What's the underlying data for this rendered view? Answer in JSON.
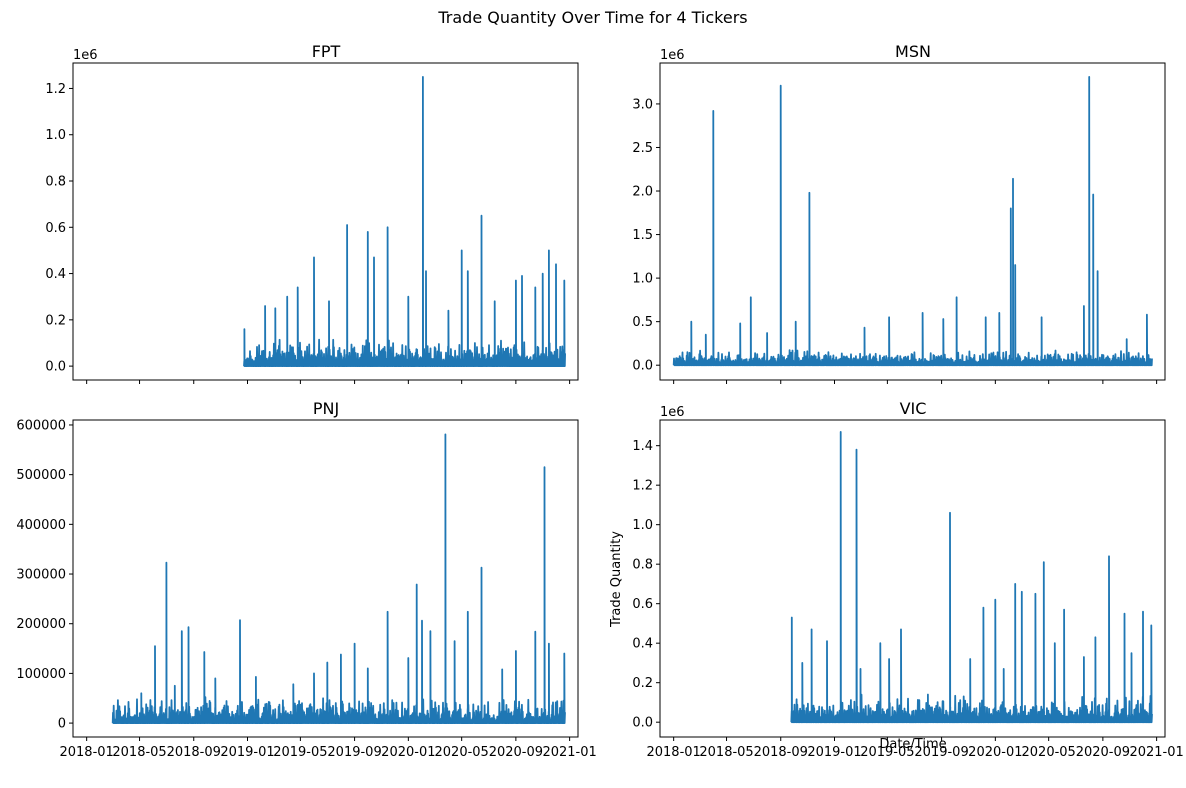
{
  "figure_title": "Trade Quantity Over Time for 4 Tickers",
  "chart_data": [
    {
      "type": "line",
      "title": "FPT",
      "xlabel": "",
      "ylabel": "",
      "offset_label": "1e6",
      "x_range": [
        "2017-12-01",
        "2021-01-20"
      ],
      "ylim": [
        -0.06,
        1.31
      ],
      "yticks": [
        0.0,
        0.2,
        0.4,
        0.6,
        0.8,
        1.0,
        1.2
      ],
      "ytick_labels": [
        "0.0",
        "0.2",
        "0.4",
        "0.6",
        "0.8",
        "1.0",
        "1.2"
      ],
      "xticks": [
        "2018-01",
        "2018-05",
        "2018-09",
        "2019-01",
        "2019-05",
        "2019-09",
        "2020-01",
        "2020-05",
        "2020-09",
        "2021-01"
      ],
      "xtick_labels": [],
      "color": "#1f77b4",
      "base": 0.02,
      "noise": 0.1,
      "start": "2018-12-24",
      "end": "2020-12-22",
      "peaks": [
        [
          "2018-12-25",
          0.16
        ],
        [
          "2019-02-10",
          0.26
        ],
        [
          "2019-03-05",
          0.25
        ],
        [
          "2019-04-01",
          0.3
        ],
        [
          "2019-04-25",
          0.34
        ],
        [
          "2019-06-01",
          0.47
        ],
        [
          "2019-07-05",
          0.28
        ],
        [
          "2019-08-15",
          0.61
        ],
        [
          "2019-10-01",
          0.58
        ],
        [
          "2019-10-15",
          0.47
        ],
        [
          "2019-11-15",
          0.6
        ],
        [
          "2020-01-01",
          0.3
        ],
        [
          "2020-02-03",
          1.25
        ],
        [
          "2020-02-10",
          0.41
        ],
        [
          "2020-04-01",
          0.24
        ],
        [
          "2020-05-01",
          0.5
        ],
        [
          "2020-05-15",
          0.41
        ],
        [
          "2020-06-15",
          0.65
        ],
        [
          "2020-07-15",
          0.28
        ],
        [
          "2020-09-01",
          0.37
        ],
        [
          "2020-09-15",
          0.39
        ],
        [
          "2020-10-15",
          0.34
        ],
        [
          "2020-11-01",
          0.4
        ],
        [
          "2020-11-15",
          0.5
        ],
        [
          "2020-12-01",
          0.44
        ],
        [
          "2020-12-20",
          0.37
        ]
      ]
    },
    {
      "type": "line",
      "title": "MSN",
      "xlabel": "",
      "ylabel": "",
      "offset_label": "1e6",
      "x_range": [
        "2017-12-01",
        "2021-01-20"
      ],
      "ylim": [
        -0.17,
        3.47
      ],
      "yticks": [
        0.0,
        0.5,
        1.0,
        1.5,
        2.0,
        2.5,
        3.0
      ],
      "ytick_labels": [
        "0.0",
        "0.5",
        "1.0",
        "1.5",
        "2.0",
        "2.5",
        "3.0"
      ],
      "xticks": [
        "2018-01",
        "2018-05",
        "2018-09",
        "2019-01",
        "2019-05",
        "2019-09",
        "2020-01",
        "2020-05",
        "2020-09",
        "2021-01"
      ],
      "xtick_labels": [],
      "color": "#1f77b4",
      "base": 0.03,
      "noise": 0.15,
      "start": "2018-01-01",
      "end": "2020-12-22",
      "peaks": [
        [
          "2018-02-10",
          0.5
        ],
        [
          "2018-03-15",
          0.35
        ],
        [
          "2018-04-01",
          2.92
        ],
        [
          "2018-06-01",
          0.48
        ],
        [
          "2018-06-25",
          0.78
        ],
        [
          "2018-08-01",
          0.37
        ],
        [
          "2018-09-01",
          3.21
        ],
        [
          "2018-10-05",
          0.5
        ],
        [
          "2018-11-05",
          1.98
        ],
        [
          "2019-03-10",
          0.43
        ],
        [
          "2019-05-05",
          0.55
        ],
        [
          "2019-07-20",
          0.6
        ],
        [
          "2019-09-05",
          0.53
        ],
        [
          "2019-10-05",
          0.78
        ],
        [
          "2019-12-10",
          0.55
        ],
        [
          "2020-01-10",
          0.6
        ],
        [
          "2020-02-05",
          1.8
        ],
        [
          "2020-02-10",
          2.14
        ],
        [
          "2020-02-15",
          1.15
        ],
        [
          "2020-04-15",
          0.55
        ],
        [
          "2020-07-20",
          0.68
        ],
        [
          "2020-08-01",
          3.31
        ],
        [
          "2020-08-10",
          1.96
        ],
        [
          "2020-08-20",
          1.08
        ],
        [
          "2020-10-25",
          0.3
        ],
        [
          "2020-12-10",
          0.58
        ]
      ]
    },
    {
      "type": "line",
      "title": "PNJ",
      "xlabel": "",
      "ylabel": "",
      "offset_label": "",
      "x_range": [
        "2017-12-01",
        "2021-01-20"
      ],
      "ylim": [
        -28000,
        610000
      ],
      "yticks": [
        0,
        100000,
        200000,
        300000,
        400000,
        500000,
        600000
      ],
      "ytick_labels": [
        "0",
        "100000",
        "200000",
        "300000",
        "400000",
        "500000",
        "600000"
      ],
      "xticks": [
        "2018-01",
        "2018-05",
        "2018-09",
        "2019-01",
        "2019-05",
        "2019-09",
        "2020-01",
        "2020-05",
        "2020-09",
        "2021-01"
      ],
      "xtick_labels": [
        "2018-01",
        "2018-05",
        "2018-09",
        "2019-01",
        "2019-05",
        "2019-09",
        "2020-01",
        "2020-05",
        "2020-09",
        "2021-01"
      ],
      "color": "#1f77b4",
      "base": 5000,
      "noise": 50000,
      "start": "2018-03-01",
      "end": "2020-12-22",
      "peaks": [
        [
          "2018-05-05",
          60000
        ],
        [
          "2018-06-05",
          155000
        ],
        [
          "2018-07-01",
          323000
        ],
        [
          "2018-07-20",
          75000
        ],
        [
          "2018-08-05",
          185000
        ],
        [
          "2018-08-20",
          193000
        ],
        [
          "2018-09-25",
          143000
        ],
        [
          "2018-10-20",
          90000
        ],
        [
          "2018-12-15",
          207000
        ],
        [
          "2019-01-20",
          93000
        ],
        [
          "2019-04-15",
          78000
        ],
        [
          "2019-06-01",
          100000
        ],
        [
          "2019-07-01",
          122000
        ],
        [
          "2019-08-01",
          138000
        ],
        [
          "2019-09-01",
          160000
        ],
        [
          "2019-10-01",
          110000
        ],
        [
          "2019-11-15",
          224000
        ],
        [
          "2020-01-01",
          131000
        ],
        [
          "2020-01-20",
          279000
        ],
        [
          "2020-02-01",
          206000
        ],
        [
          "2020-02-20",
          185000
        ],
        [
          "2020-03-25",
          581000
        ],
        [
          "2020-04-15",
          165000
        ],
        [
          "2020-05-15",
          224000
        ],
        [
          "2020-06-15",
          313000
        ],
        [
          "2020-08-01",
          108000
        ],
        [
          "2020-09-01",
          145000
        ],
        [
          "2020-10-15",
          184000
        ],
        [
          "2020-11-05",
          515000
        ],
        [
          "2020-11-15",
          160000
        ],
        [
          "2020-12-20",
          140000
        ]
      ]
    },
    {
      "type": "line",
      "title": "VIC",
      "xlabel": "Date/Time",
      "ylabel": "Trade Quantity",
      "offset_label": "1e6",
      "x_range": [
        "2017-12-01",
        "2021-01-20"
      ],
      "ylim": [
        -0.075,
        1.53
      ],
      "yticks": [
        0.0,
        0.2,
        0.4,
        0.6,
        0.8,
        1.0,
        1.2,
        1.4
      ],
      "ytick_labels": [
        "0.0",
        "0.2",
        "0.4",
        "0.6",
        "0.8",
        "1.0",
        "1.2",
        "1.4"
      ],
      "xticks": [
        "2018-01",
        "2018-05",
        "2018-09",
        "2019-01",
        "2019-05",
        "2019-09",
        "2020-01",
        "2020-05",
        "2020-09",
        "2021-01"
      ],
      "xtick_labels": [
        "2018-01",
        "2018-05",
        "2018-09",
        "2019-01",
        "2019-05",
        "2019-09",
        "2020-01",
        "2020-05",
        "2020-09",
        "2021-01"
      ],
      "color": "#1f77b4",
      "base": 0.02,
      "noise": 0.12,
      "start": "2018-09-25",
      "end": "2020-12-22",
      "peaks": [
        [
          "2018-09-26",
          0.53
        ],
        [
          "2018-10-20",
          0.3
        ],
        [
          "2018-11-10",
          0.47
        ],
        [
          "2018-12-15",
          0.41
        ],
        [
          "2019-01-15",
          1.47
        ],
        [
          "2019-02-20",
          1.38
        ],
        [
          "2019-03-01",
          0.27
        ],
        [
          "2019-04-15",
          0.4
        ],
        [
          "2019-05-05",
          0.32
        ],
        [
          "2019-06-01",
          0.47
        ],
        [
          "2019-08-01",
          0.14
        ],
        [
          "2019-09-20",
          1.06
        ],
        [
          "2019-11-05",
          0.32
        ],
        [
          "2019-12-05",
          0.58
        ],
        [
          "2020-01-01",
          0.62
        ],
        [
          "2020-01-20",
          0.27
        ],
        [
          "2020-02-15",
          0.7
        ],
        [
          "2020-03-01",
          0.66
        ],
        [
          "2020-04-01",
          0.65
        ],
        [
          "2020-04-20",
          0.81
        ],
        [
          "2020-05-15",
          0.4
        ],
        [
          "2020-06-05",
          0.57
        ],
        [
          "2020-07-20",
          0.33
        ],
        [
          "2020-08-15",
          0.43
        ],
        [
          "2020-09-15",
          0.84
        ],
        [
          "2020-10-20",
          0.55
        ],
        [
          "2020-11-05",
          0.35
        ],
        [
          "2020-12-01",
          0.56
        ],
        [
          "2020-12-20",
          0.49
        ]
      ]
    }
  ]
}
